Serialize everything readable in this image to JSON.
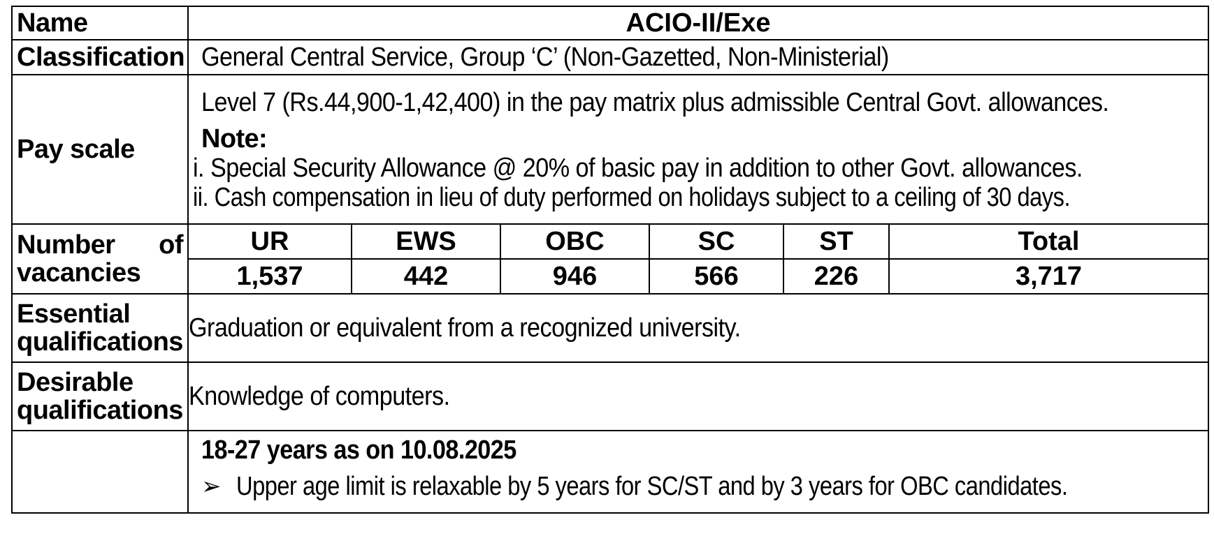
{
  "rows": {
    "name": {
      "label": "Name",
      "value": "ACIO-II/Exe"
    },
    "classification": {
      "label": "Classification",
      "value": "General Central Service, Group ‘C’ (Non-Gazetted, Non-Ministerial)"
    },
    "pay_scale": {
      "label": "Pay scale",
      "line1": "Level 7 (Rs.44,900-1,42,400) in the pay matrix plus admissible Central Govt. allowances.",
      "note_label": "Note:",
      "note_i": "i. Special Security Allowance @ 20% of basic pay in addition to other Govt. allowances.",
      "note_ii": "ii. Cash compensation in lieu of duty performed on holidays subject to a ceiling of 30 days."
    },
    "vacancies": {
      "label_word1": "Number",
      "label_word2": "of",
      "label_line2": "vacancies",
      "headers": [
        "UR",
        "EWS",
        "OBC",
        "SC",
        "ST",
        "Total"
      ],
      "values": [
        "1,537",
        "442",
        "946",
        "566",
        "226",
        "3,717"
      ]
    },
    "essential": {
      "label_line1": "Essential",
      "label_line2": "qualifications",
      "value": "Graduation or equivalent from a recognized university."
    },
    "desirable": {
      "label_line1": "Desirable",
      "label_line2": "qualifications",
      "value": "Knowledge of computers."
    },
    "age": {
      "title": "18-27 years as on 10.08.2025",
      "bullet_icon": "arrow-bullet-icon",
      "bullet": "Upper age limit is relaxable by 5 years for SC/ST and by 3 years for OBC candidates."
    }
  }
}
